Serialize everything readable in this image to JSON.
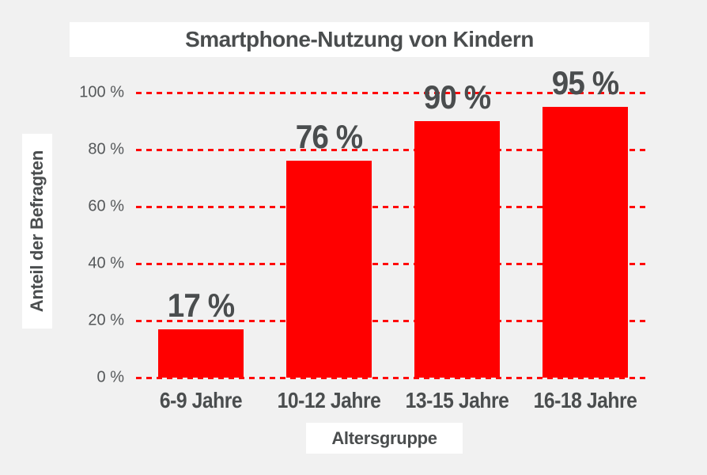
{
  "chart_data": {
    "type": "bar",
    "title": "Smartphone-Nutzung von Kindern",
    "xlabel": "Altersgruppe",
    "ylabel": "Anteil der Befragten",
    "categories": [
      "6-9 Jahre",
      "10-12 Jahre",
      "13-15 Jahre",
      "16-18 Jahre"
    ],
    "values": [
      17,
      76,
      90,
      95
    ],
    "value_labels": [
      "17 %",
      "76 %",
      "90 %",
      "95 %"
    ],
    "ylim": [
      0,
      100
    ],
    "yticks": [
      0,
      20,
      40,
      60,
      80,
      100
    ],
    "ytick_labels": [
      "0 %",
      "20 %",
      "40 %",
      "60 %",
      "80 %",
      "100 %"
    ],
    "grid": true,
    "gridline_style": "dashed",
    "legend": false,
    "colors": {
      "bar": "#ff0000",
      "gridline": "#ff0a0a",
      "text": "#4a4d4e",
      "background": "#f1f1f1",
      "panel": "#ffffff"
    }
  }
}
